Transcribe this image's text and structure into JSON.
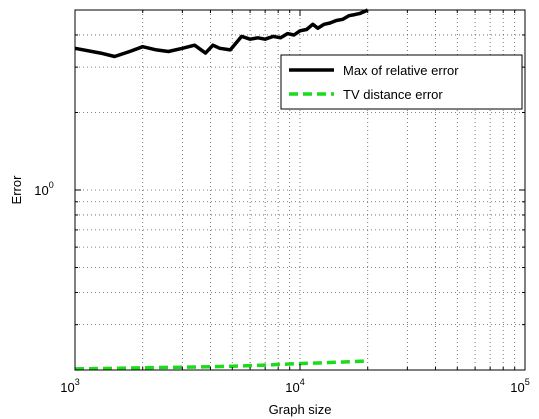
{
  "chart_data": {
    "type": "line",
    "xscale": "log",
    "yscale": "log",
    "xlabel": "Graph size",
    "ylabel": "Error",
    "xlim": [
      1000,
      100000
    ],
    "ylim": [
      0.2,
      5.0
    ],
    "x_ticks": [
      {
        "base": "10",
        "exp": "3",
        "value": 1000
      },
      {
        "base": "10",
        "exp": "4",
        "value": 10000
      },
      {
        "base": "10",
        "exp": "5",
        "value": 100000
      }
    ],
    "y_ticks": [
      {
        "base": "10",
        "exp": "0",
        "value": 1
      }
    ],
    "grid": true,
    "grid_style": "dotted",
    "legend_position": "upper-right",
    "series": [
      {
        "name": "Max of relative error",
        "color": "#000000",
        "style": "solid",
        "x": [
          1000,
          1300,
          1500,
          1750,
          2000,
          2300,
          2600,
          3000,
          3400,
          3800,
          4100,
          4400,
          4900,
          5500,
          6000,
          6500,
          7000,
          7600,
          8200,
          8800,
          9400,
          10000,
          10700,
          11400,
          12000,
          12800,
          13600,
          14500,
          15500,
          16500,
          17500,
          18500,
          19500,
          20000
        ],
        "y": [
          3.55,
          3.4,
          3.3,
          3.45,
          3.6,
          3.5,
          3.45,
          3.55,
          3.65,
          3.4,
          3.65,
          3.55,
          3.5,
          3.95,
          3.85,
          3.9,
          3.85,
          3.95,
          3.9,
          4.05,
          4.0,
          4.15,
          4.2,
          4.4,
          4.25,
          4.4,
          4.45,
          4.55,
          4.6,
          4.75,
          4.8,
          4.85,
          4.95,
          5.0
        ]
      },
      {
        "name": "TV distance error",
        "color": "#1adc1a",
        "style": "dashed",
        "x": [
          1000,
          1500,
          2000,
          3000,
          4000,
          5000,
          6000,
          7000,
          8000,
          9000,
          10000,
          12000,
          14000,
          16000,
          18000,
          20000
        ],
        "y": [
          0.202,
          0.203,
          0.204,
          0.205,
          0.206,
          0.207,
          0.208,
          0.209,
          0.21,
          0.211,
          0.212,
          0.213,
          0.214,
          0.215,
          0.216,
          0.217
        ]
      }
    ]
  }
}
